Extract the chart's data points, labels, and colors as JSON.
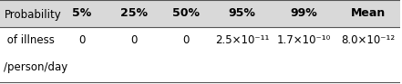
{
  "col_headers": [
    "",
    "5%",
    "25%",
    "50%",
    "95%",
    "99%",
    "Mean"
  ],
  "row_label_lines": [
    "Probability",
    " of illness",
    "/person/day"
  ],
  "row_values": [
    "0",
    "0",
    "0",
    "2.5×10⁻¹¹",
    "1.7×10⁻¹⁰",
    "8.0×10⁻¹²"
  ],
  "header_bg": "#d9d9d9",
  "border_color": "#555555",
  "text_color": "#000000",
  "fontsize": 8.5,
  "header_fontsize": 9.0
}
